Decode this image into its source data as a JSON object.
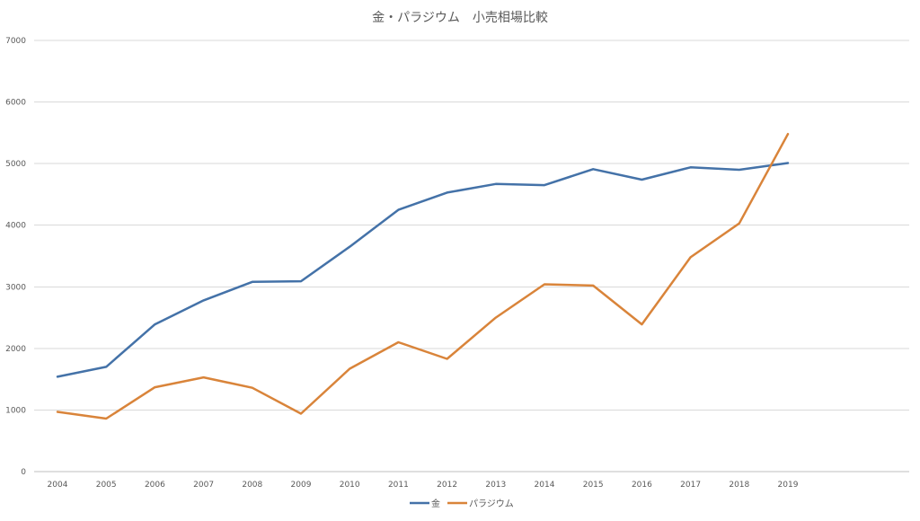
{
  "chart_data": {
    "type": "line",
    "title": "金・パラジウム　小売相場比較",
    "xlabel": "",
    "ylabel": "",
    "categories": [
      "2004",
      "2005",
      "2006",
      "2007",
      "2008",
      "2009",
      "2010",
      "2011",
      "2012",
      "2013",
      "2014",
      "2015",
      "2016",
      "2017",
      "2018",
      "2019"
    ],
    "ylim": [
      0,
      7000
    ],
    "yticks": [
      0,
      1000,
      2000,
      3000,
      4000,
      5000,
      6000,
      7000
    ],
    "grid": true,
    "legend_position": "bottom",
    "series": [
      {
        "name": "金",
        "color": "#4472a8",
        "values": [
          1540,
          1700,
          2390,
          2780,
          3080,
          3090,
          3650,
          4250,
          4530,
          4670,
          4650,
          4910,
          4740,
          4940,
          4900,
          5010
        ]
      },
      {
        "name": "パラジウム",
        "color": "#d9843a",
        "values": [
          970,
          860,
          1370,
          1530,
          1360,
          940,
          1670,
          2100,
          1830,
          2500,
          3040,
          3020,
          2390,
          3480,
          4030,
          5480
        ]
      }
    ]
  }
}
